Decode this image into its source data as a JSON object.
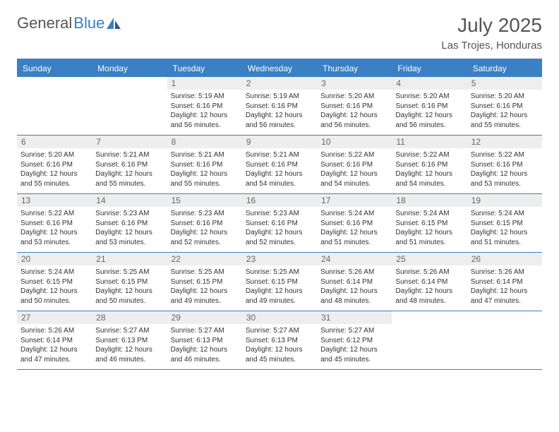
{
  "logo": {
    "part1": "General",
    "part2": "Blue"
  },
  "title": "July 2025",
  "location": "Las Trojes, Honduras",
  "colors": {
    "header_bg": "#3b7fc4",
    "header_text": "#ffffff",
    "daynum_bg": "#eeeeee",
    "border": "#3b7fc4",
    "text": "#333333",
    "title_color": "#555555"
  },
  "weekdays": [
    "Sunday",
    "Monday",
    "Tuesday",
    "Wednesday",
    "Thursday",
    "Friday",
    "Saturday"
  ],
  "weeks": [
    [
      null,
      null,
      {
        "n": "1",
        "sr": "5:19 AM",
        "ss": "6:16 PM",
        "dl": "12 hours and 56 minutes."
      },
      {
        "n": "2",
        "sr": "5:19 AM",
        "ss": "6:16 PM",
        "dl": "12 hours and 56 minutes."
      },
      {
        "n": "3",
        "sr": "5:20 AM",
        "ss": "6:16 PM",
        "dl": "12 hours and 56 minutes."
      },
      {
        "n": "4",
        "sr": "5:20 AM",
        "ss": "6:16 PM",
        "dl": "12 hours and 56 minutes."
      },
      {
        "n": "5",
        "sr": "5:20 AM",
        "ss": "6:16 PM",
        "dl": "12 hours and 55 minutes."
      }
    ],
    [
      {
        "n": "6",
        "sr": "5:20 AM",
        "ss": "6:16 PM",
        "dl": "12 hours and 55 minutes."
      },
      {
        "n": "7",
        "sr": "5:21 AM",
        "ss": "6:16 PM",
        "dl": "12 hours and 55 minutes."
      },
      {
        "n": "8",
        "sr": "5:21 AM",
        "ss": "6:16 PM",
        "dl": "12 hours and 55 minutes."
      },
      {
        "n": "9",
        "sr": "5:21 AM",
        "ss": "6:16 PM",
        "dl": "12 hours and 54 minutes."
      },
      {
        "n": "10",
        "sr": "5:22 AM",
        "ss": "6:16 PM",
        "dl": "12 hours and 54 minutes."
      },
      {
        "n": "11",
        "sr": "5:22 AM",
        "ss": "6:16 PM",
        "dl": "12 hours and 54 minutes."
      },
      {
        "n": "12",
        "sr": "5:22 AM",
        "ss": "6:16 PM",
        "dl": "12 hours and 53 minutes."
      }
    ],
    [
      {
        "n": "13",
        "sr": "5:22 AM",
        "ss": "6:16 PM",
        "dl": "12 hours and 53 minutes."
      },
      {
        "n": "14",
        "sr": "5:23 AM",
        "ss": "6:16 PM",
        "dl": "12 hours and 53 minutes."
      },
      {
        "n": "15",
        "sr": "5:23 AM",
        "ss": "6:16 PM",
        "dl": "12 hours and 52 minutes."
      },
      {
        "n": "16",
        "sr": "5:23 AM",
        "ss": "6:16 PM",
        "dl": "12 hours and 52 minutes."
      },
      {
        "n": "17",
        "sr": "5:24 AM",
        "ss": "6:16 PM",
        "dl": "12 hours and 51 minutes."
      },
      {
        "n": "18",
        "sr": "5:24 AM",
        "ss": "6:15 PM",
        "dl": "12 hours and 51 minutes."
      },
      {
        "n": "19",
        "sr": "5:24 AM",
        "ss": "6:15 PM",
        "dl": "12 hours and 51 minutes."
      }
    ],
    [
      {
        "n": "20",
        "sr": "5:24 AM",
        "ss": "6:15 PM",
        "dl": "12 hours and 50 minutes."
      },
      {
        "n": "21",
        "sr": "5:25 AM",
        "ss": "6:15 PM",
        "dl": "12 hours and 50 minutes."
      },
      {
        "n": "22",
        "sr": "5:25 AM",
        "ss": "6:15 PM",
        "dl": "12 hours and 49 minutes."
      },
      {
        "n": "23",
        "sr": "5:25 AM",
        "ss": "6:15 PM",
        "dl": "12 hours and 49 minutes."
      },
      {
        "n": "24",
        "sr": "5:26 AM",
        "ss": "6:14 PM",
        "dl": "12 hours and 48 minutes."
      },
      {
        "n": "25",
        "sr": "5:26 AM",
        "ss": "6:14 PM",
        "dl": "12 hours and 48 minutes."
      },
      {
        "n": "26",
        "sr": "5:26 AM",
        "ss": "6:14 PM",
        "dl": "12 hours and 47 minutes."
      }
    ],
    [
      {
        "n": "27",
        "sr": "5:26 AM",
        "ss": "6:14 PM",
        "dl": "12 hours and 47 minutes."
      },
      {
        "n": "28",
        "sr": "5:27 AM",
        "ss": "6:13 PM",
        "dl": "12 hours and 46 minutes."
      },
      {
        "n": "29",
        "sr": "5:27 AM",
        "ss": "6:13 PM",
        "dl": "12 hours and 46 minutes."
      },
      {
        "n": "30",
        "sr": "5:27 AM",
        "ss": "6:13 PM",
        "dl": "12 hours and 45 minutes."
      },
      {
        "n": "31",
        "sr": "5:27 AM",
        "ss": "6:12 PM",
        "dl": "12 hours and 45 minutes."
      },
      null,
      null
    ]
  ],
  "labels": {
    "sunrise": "Sunrise: ",
    "sunset": "Sunset: ",
    "daylight": "Daylight: "
  }
}
